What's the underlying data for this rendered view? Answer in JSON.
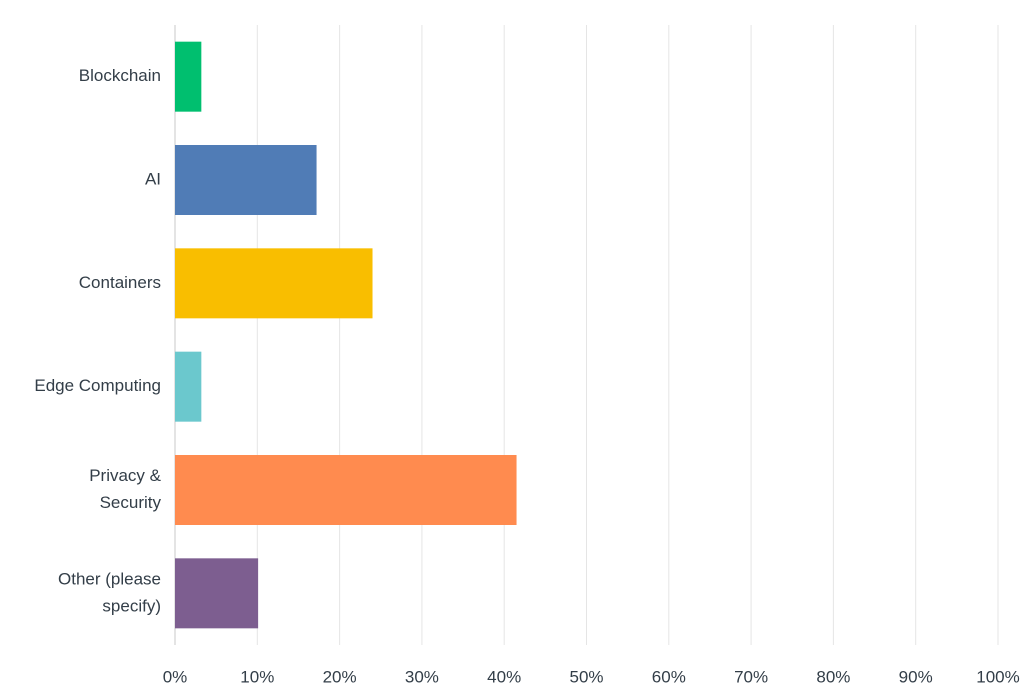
{
  "chart_data": {
    "type": "bar",
    "orientation": "horizontal",
    "categories": [
      "Blockchain",
      "AI",
      "Containers",
      "Edge Computing",
      "Privacy & Security",
      "Other (please specify)"
    ],
    "values": [
      3.2,
      17.2,
      24.0,
      3.2,
      41.5,
      10.1
    ],
    "colors": [
      "#00bf6f",
      "#507cb6",
      "#f9be00",
      "#6bc8cd",
      "#ff8b4f",
      "#7d5e90"
    ],
    "xlim": [
      0,
      100
    ],
    "xticks": [
      {
        "value": 0,
        "label": "0%"
      },
      {
        "value": 10,
        "label": "10%"
      },
      {
        "value": 20,
        "label": "20%"
      },
      {
        "value": 30,
        "label": "30%"
      },
      {
        "value": 40,
        "label": "40%"
      },
      {
        "value": 50,
        "label": "50%"
      },
      {
        "value": 60,
        "label": "60%"
      },
      {
        "value": 70,
        "label": "70%"
      },
      {
        "value": 80,
        "label": "80%"
      },
      {
        "value": 90,
        "label": "90%"
      },
      {
        "value": 100,
        "label": "100%"
      }
    ],
    "grid": true
  }
}
